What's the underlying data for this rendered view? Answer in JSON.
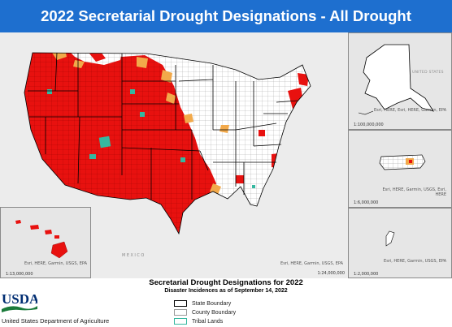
{
  "title": "2022 Secretarial Drought Designations - All Drought",
  "colors": {
    "title_bar": "#1e6fcf",
    "primary_designation": "#e8110f",
    "contiguous_designation": "#f2a94a",
    "tribal_lands": "#35b8a0",
    "state_boundary": "#000000",
    "county_boundary": "#9a9a9a",
    "land": "#ffffff",
    "background": "#ececec"
  },
  "main_map": {
    "scale": "1:24,000,000",
    "credit": "Esri, HERE, Garmin, USGS, EPA",
    "labels": {
      "mexico": "MEXICO"
    }
  },
  "insets": {
    "hawaii": {
      "scale": "1:13,000,000",
      "credit": "Esri, HERE, Garmin, USGS, EPA"
    },
    "alaska": {
      "scale": "1:100,000,000",
      "credit": "Esri, HERE, Esri, HERE, Garmin, EPA",
      "label": "UNITED STATES"
    },
    "puerto_rico": {
      "scale": "1:6,000,000",
      "credit": "Esri, HERE, Garmin, USGS, Esri, HERE"
    },
    "guam": {
      "scale": "1:2,000,000",
      "credit": "Esri, HERE, Garmin, USGS, EPA"
    }
  },
  "legend": {
    "title": "Secretarial Drought Designations for 2022",
    "subtitle": "Disaster Incidences as of September 14, 2022",
    "items": [
      {
        "label": "State Boundary",
        "icon": "state-boundary-swatch",
        "border": "#000000"
      },
      {
        "label": "County Boundary",
        "icon": "county-boundary-swatch",
        "border": "#9a9a9a"
      },
      {
        "label": "Tribal Lands",
        "icon": "tribal-lands-swatch",
        "border": "#35b8a0"
      }
    ]
  },
  "branding": {
    "logo_text": "USDA",
    "caption": "United States Department of Agriculture",
    "logo_colors": {
      "text": "#002d72",
      "stripe": "#1a7a3a"
    }
  }
}
